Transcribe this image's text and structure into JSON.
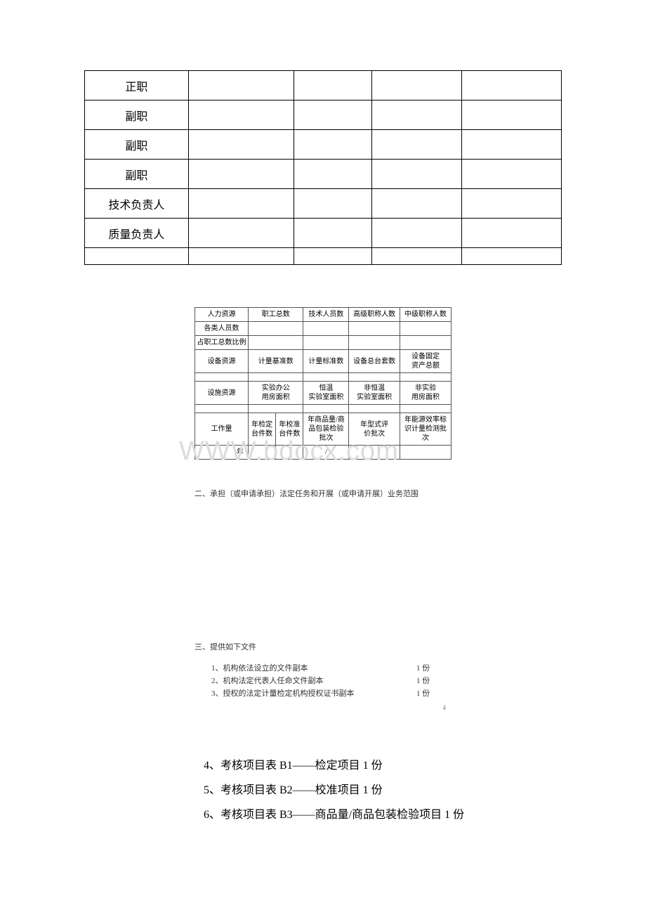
{
  "table1": {
    "rows": [
      {
        "label": "正职"
      },
      {
        "label": "副职"
      },
      {
        "label": "副职"
      },
      {
        "label": "副职"
      },
      {
        "label": "技术负责人"
      },
      {
        "label": "质量负责人"
      },
      {
        "label": ""
      }
    ]
  },
  "table2": {
    "hr": {
      "title": "人力资源",
      "c1": "职工总数",
      "c2": "技术人员数",
      "c3": "高级职称人数",
      "c4": "中级职称人数"
    },
    "hr_r1": "各类人员数",
    "hr_r2": "占职工总数比例",
    "equip": {
      "title": "设备资源",
      "c1": "计量基准数",
      "c2": "计量标准数",
      "c3": "设备总台套数",
      "c4a": "设备固定",
      "c4b": "资产总额"
    },
    "fac": {
      "title": "设施资源",
      "c1a": "实验办公",
      "c1b": "用房面积",
      "c2a": "恒温",
      "c2b": "实验室面积",
      "c3a": "非恒温",
      "c3b": "实验室面积",
      "c4a": "非实验",
      "c4b": "用房面积"
    },
    "work": {
      "title": "工作量",
      "c1a": "年检定",
      "c1b": "台件数",
      "c2a": "年校准",
      "c2b": "台件数",
      "c3a": "年商品量/商",
      "c3b": "品包装检验",
      "c3c": "批次",
      "c4a": "年型式评",
      "c4b": "价批次",
      "c5a": "年能源效率标",
      "c5b": "识计量检测批",
      "c5c": "次"
    },
    "year_label": "年",
    "year_slash": "/"
  },
  "section2_title": "二、承担（或申请承担）法定任务和开展（或申请开展）业务范围",
  "section3_title": "三、提供如下文件",
  "files": [
    {
      "label": "1、机构依法设立的文件副本",
      "count": "1 份"
    },
    {
      "label": "2、机构法定代表人任命文件副本",
      "count": "1 份"
    },
    {
      "label": "3、授权的法定计量检定机构授权证书副本",
      "count": "1 份"
    }
  ],
  "body_lines": [
    "4、考核项目表 B1——检定项目  1 份",
    "5、考核项目表 B2——校准项目   1 份",
    "6、考核项目表 B3——商品量/商品包装检验项目  1 份"
  ],
  "watermark": "WWW.bdocx.com",
  "tiny": "4"
}
